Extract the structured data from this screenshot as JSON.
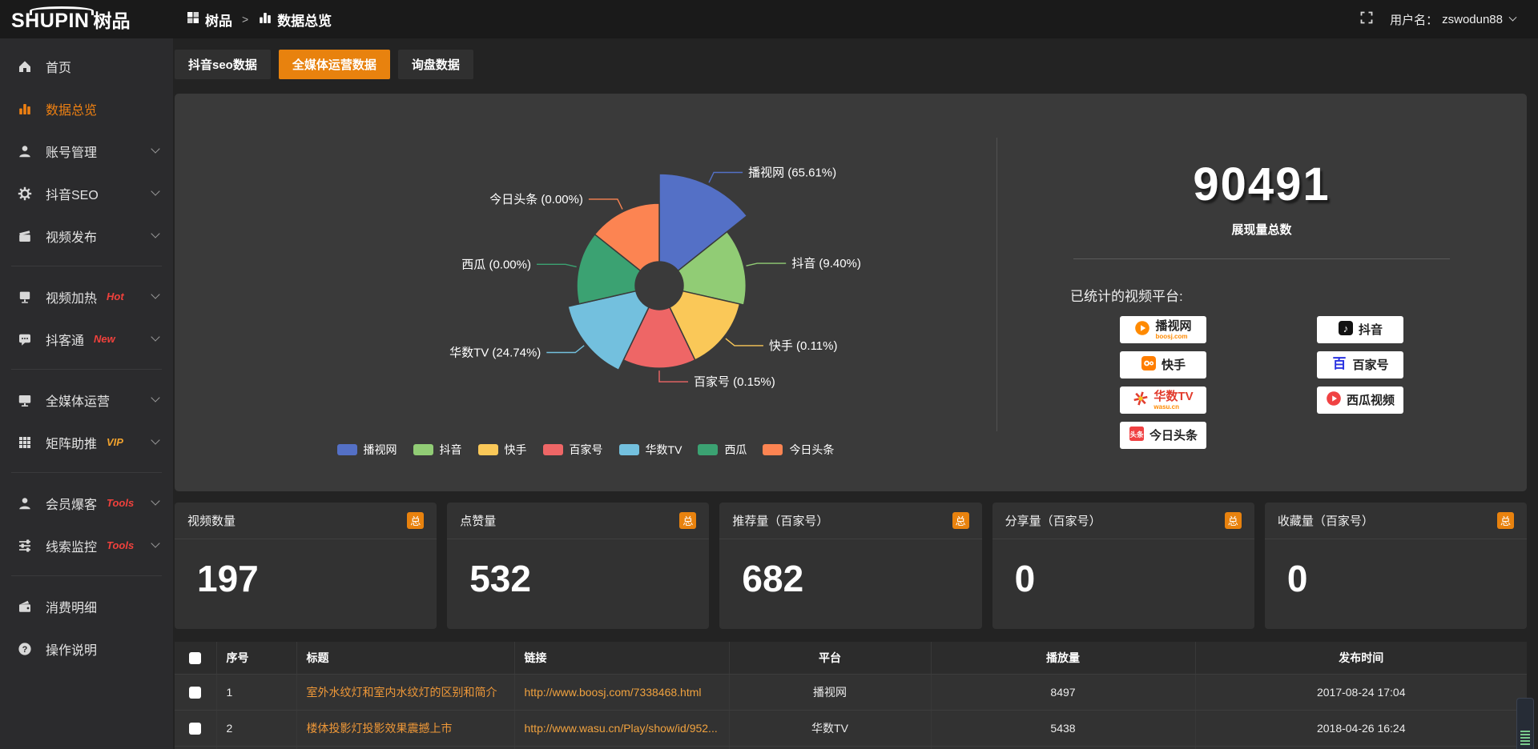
{
  "topbar": {
    "logo": "SHUPIN",
    "logo_cn": "树品",
    "breadcrumb": {
      "root": "树品",
      "separator": ">",
      "current": "数据总览"
    },
    "user_label": "用户名：",
    "username": "zswodun88"
  },
  "sidebar": {
    "items": [
      {
        "label": "首页",
        "icon": "home"
      },
      {
        "label": "数据总览",
        "icon": "chart",
        "active": true
      },
      {
        "label": "账号管理",
        "icon": "user",
        "chevron": true
      },
      {
        "label": "抖音SEO",
        "icon": "gear",
        "chevron": true
      },
      {
        "label": "视频发布",
        "icon": "clapper",
        "chevron": true,
        "divider_after": true
      },
      {
        "label": "视频加热",
        "icon": "screen",
        "badge": "Hot",
        "badge_color": "#f0413c",
        "chevron": true
      },
      {
        "label": "抖客通",
        "icon": "chat",
        "badge": "New",
        "badge_color": "#f0413c",
        "chevron": true,
        "divider_after": true
      },
      {
        "label": "全媒体运营",
        "icon": "monitor",
        "chevron": true
      },
      {
        "label": "矩阵助推",
        "icon": "grid",
        "badge": "VIP",
        "badge_color": "#f0a22e",
        "chevron": true,
        "divider_after": true
      },
      {
        "label": "会员爆客",
        "icon": "person",
        "badge": "Tools",
        "badge_color": "#f0413c",
        "chevron": true
      },
      {
        "label": "线索监控",
        "icon": "sliders",
        "badge": "Tools",
        "badge_color": "#f0413c",
        "chevron": true,
        "divider_after": true
      },
      {
        "label": "消费明细",
        "icon": "wallet"
      },
      {
        "label": "操作说明",
        "icon": "question"
      }
    ]
  },
  "tabs": [
    {
      "label": "抖音seo数据",
      "active": false
    },
    {
      "label": "全媒体运营数据",
      "active": true
    },
    {
      "label": "询盘数据",
      "active": false
    }
  ],
  "chart_data": {
    "type": "pie",
    "subtype": "nightingale-rose",
    "title": "",
    "legend_position": "bottom",
    "unit": "%",
    "series": [
      {
        "name": "播视网",
        "percent": 65.61,
        "color": "#5470c6"
      },
      {
        "name": "抖音",
        "percent": 9.4,
        "color": "#91cc75"
      },
      {
        "name": "快手",
        "percent": 0.11,
        "color": "#fac858"
      },
      {
        "name": "百家号",
        "percent": 0.15,
        "color": "#ee6666"
      },
      {
        "name": "华数TV",
        "percent": 24.74,
        "color": "#73c0de"
      },
      {
        "name": "西瓜",
        "percent": 0.0,
        "color": "#3ba272"
      },
      {
        "name": "今日头条",
        "percent": 0.0,
        "color": "#fc8452"
      }
    ],
    "label_format": "{name} ({percent}%)"
  },
  "summary": {
    "total_value": "90491",
    "total_label": "展现量总数",
    "platforms_label": "已统计的视频平台:",
    "platform_columns": {
      "left": [
        {
          "name": "播视网",
          "sub": "boosj.com",
          "icon": "boosj"
        },
        {
          "name": "快手",
          "icon": "kuaishou"
        },
        {
          "name": "华数TV",
          "sub": "wasu.cn",
          "icon": "wasu"
        },
        {
          "name": "今日头条",
          "icon": "toutiao"
        }
      ],
      "right": [
        {
          "name": "抖音",
          "icon": "douyin"
        },
        {
          "name": "百家号",
          "icon": "baijiahao"
        },
        {
          "name": "西瓜视频",
          "icon": "xigua"
        }
      ]
    }
  },
  "stat_cards": [
    {
      "title": "视频数量",
      "badge": "总",
      "value": "197"
    },
    {
      "title": "点赞量",
      "badge": "总",
      "value": "532"
    },
    {
      "title": "推荐量（百家号）",
      "badge": "总",
      "value": "682"
    },
    {
      "title": "分享量（百家号）",
      "badge": "总",
      "value": "0"
    },
    {
      "title": "收藏量（百家号）",
      "badge": "总",
      "value": "0"
    }
  ],
  "table": {
    "headers": {
      "index": "序号",
      "title": "标题",
      "link": "链接",
      "platform": "平台",
      "views": "播放量",
      "time": "发布时间"
    },
    "rows": [
      {
        "index": "1",
        "title": "室外水纹灯和室内水纹灯的区别和简介",
        "link": "http://www.boosj.com/7338468.html",
        "platform": "播视网",
        "views": "8497",
        "time": "2017-08-24 17:04"
      },
      {
        "index": "2",
        "title": "楼体投影灯投影效果震撼上市",
        "link": "http://www.wasu.cn/Play/show/id/952...",
        "platform": "华数TV",
        "views": "5438",
        "time": "2018-04-26 16:24"
      }
    ]
  },
  "colors": {
    "accent": "#e8820e",
    "link": "#f0a23f",
    "panel": "#3a3a3a"
  }
}
